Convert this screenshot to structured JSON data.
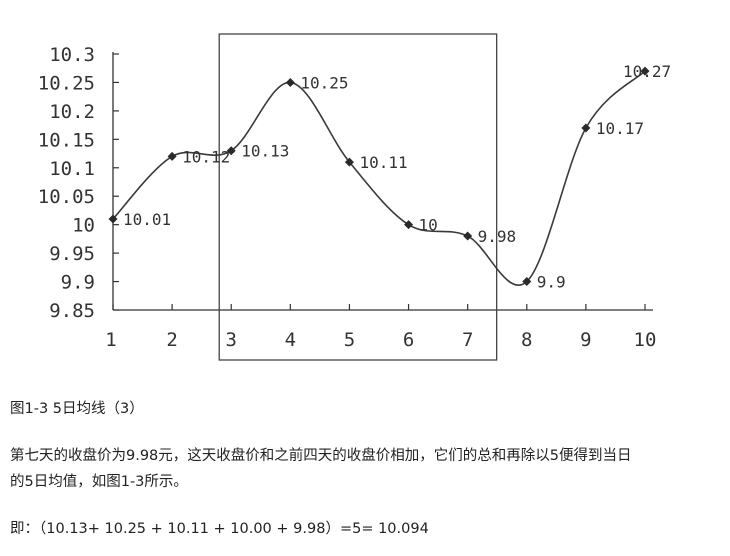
{
  "chart_data": {
    "type": "line",
    "x": [
      1,
      2,
      3,
      4,
      5,
      6,
      7,
      8,
      9,
      10
    ],
    "values": [
      10.01,
      10.12,
      10.13,
      10.25,
      10.11,
      10.0,
      9.98,
      9.9,
      10.17,
      10.27
    ],
    "data_labels": [
      "10.01",
      "10.12",
      "10.13",
      "10.25",
      "10.11",
      "10",
      "9.98",
      "9.9",
      "10.17",
      "10.27"
    ],
    "x_tick_labels": [
      "1",
      "2",
      "3",
      "4",
      "5",
      "6",
      "7",
      "8",
      "9",
      "10"
    ],
    "y_tick_labels": [
      "10.3",
      "10.25",
      "10.2",
      "10.15",
      "10.1",
      "10.05",
      "10",
      "9.95",
      "9.9",
      "9.85"
    ],
    "y_ticks": [
      10.3,
      10.25,
      10.2,
      10.15,
      10.1,
      10.05,
      10.0,
      9.95,
      9.9,
      9.85
    ],
    "ylim": [
      9.85,
      10.3
    ],
    "xlim": [
      1,
      10
    ],
    "highlight_range": [
      3,
      7
    ],
    "grid": false,
    "marker": "diamond",
    "colors": {
      "line": "#3a3a3a",
      "axis": "#333333",
      "box": "#444444"
    }
  },
  "text": {
    "caption": "图1-3 5日均线（3）",
    "para_line1": "第七天的收盘价为9.98元，这天收盘价和之前四天的收盘价相加，它们的总和再除以5便得到当日",
    "para_line2": "的5日均值，如图1-3所示。",
    "formula": "即：（10.13+ 10.25 + 10.11 + 10.00 + 9.98）=5= 10.094"
  }
}
